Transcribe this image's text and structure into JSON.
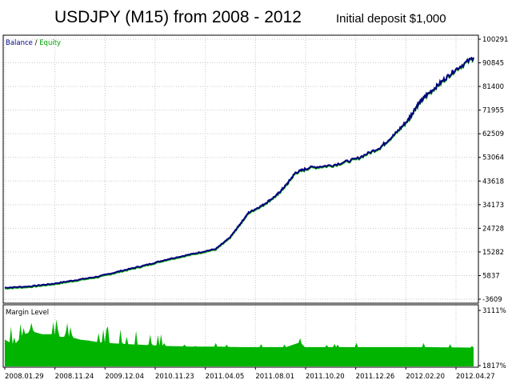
{
  "header": {
    "title": "USDJPY (M15) from 2008 - 2012",
    "subtitle": "Initial deposit  $1,000"
  },
  "colors": {
    "balance": "#000080",
    "equity": "#00a000",
    "margin": "#00b400",
    "grid": "#c8c8c8",
    "frame": "#000000"
  },
  "chart_data": [
    {
      "type": "line",
      "legend": {
        "balance_label": "Balance",
        "separator": " / ",
        "equity_label": "Equity",
        "placement": "top-left"
      },
      "x": [
        "2008.01.29",
        "2008.11.24",
        "2009.12.04",
        "2010.11.23",
        "2011.04.05",
        "2011.08.01",
        "2011.10.20",
        "2011.12.26",
        "2012.02.20",
        "2012.04.27"
      ],
      "x_ticks": [
        "2008.01.29",
        "2008.11.24",
        "2009.12.04",
        "2010.11.23",
        "2011.04.05",
        "2011.08.01",
        "2011.10.20",
        "2011.12.26",
        "2012.02.20",
        "2012.04.27"
      ],
      "y_ticks": [
        "100291",
        "90845",
        "81400",
        "71955",
        "62509",
        "53064",
        "43618",
        "34173",
        "24728",
        "15282",
        "5837",
        "-3609"
      ],
      "ylim": [
        -3609,
        100291
      ],
      "grid": true,
      "series": [
        {
          "name": "Balance",
          "points": [
            [
              0,
              1000
            ],
            [
              0.05,
              1500
            ],
            [
              0.1,
              2500
            ],
            [
              0.15,
              4000
            ],
            [
              0.2,
              5500
            ],
            [
              0.25,
              7800
            ],
            [
              0.3,
              10000
            ],
            [
              0.35,
              12500
            ],
            [
              0.4,
              14500
            ],
            [
              0.45,
              16500
            ],
            [
              0.48,
              21000
            ],
            [
              0.5,
              26000
            ],
            [
              0.52,
              31000
            ],
            [
              0.55,
              34000
            ],
            [
              0.58,
              38000
            ],
            [
              0.6,
              42000
            ],
            [
              0.62,
              47000
            ],
            [
              0.65,
              49000
            ],
            [
              0.7,
              50000
            ],
            [
              0.75,
              52500
            ],
            [
              0.8,
              57000
            ],
            [
              0.83,
              62000
            ],
            [
              0.86,
              68000
            ],
            [
              0.88,
              74000
            ],
            [
              0.9,
              78000
            ],
            [
              0.93,
              83000
            ],
            [
              0.96,
              88000
            ],
            [
              1,
              93000
            ]
          ]
        }
      ]
    },
    {
      "type": "area",
      "title": "Margin Level",
      "y_ticks": [
        "3111%",
        "1817%"
      ],
      "grid": true,
      "series": [
        {
          "name": "Margin Level",
          "levels": [
            [
              0.0,
              0.5
            ],
            [
              0.02,
              0.4
            ],
            [
              0.04,
              0.6
            ],
            [
              0.06,
              0.65
            ],
            [
              0.08,
              0.6
            ],
            [
              0.1,
              0.6
            ],
            [
              0.12,
              0.55
            ],
            [
              0.14,
              0.55
            ],
            [
              0.16,
              0.5
            ],
            [
              0.18,
              0.48
            ],
            [
              0.2,
              0.45
            ],
            [
              0.25,
              0.42
            ],
            [
              0.3,
              0.4
            ],
            [
              0.35,
              0.38
            ],
            [
              0.4,
              0.37
            ],
            [
              0.45,
              0.37
            ],
            [
              0.5,
              0.36
            ],
            [
              0.55,
              0.36
            ],
            [
              0.6,
              0.36
            ],
            [
              0.63,
              0.45
            ],
            [
              0.64,
              0.36
            ],
            [
              0.7,
              0.36
            ],
            [
              0.8,
              0.36
            ],
            [
              0.9,
              0.36
            ],
            [
              1.0,
              0.35
            ]
          ]
        }
      ]
    }
  ]
}
